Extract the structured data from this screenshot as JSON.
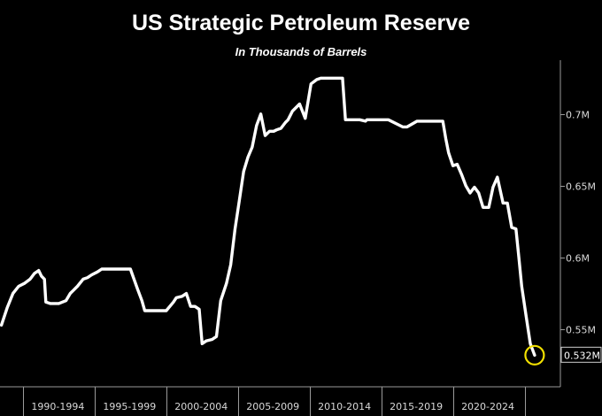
{
  "colors": {
    "background": "#000000",
    "line": "#ffffff",
    "axis": "#9a9a9a",
    "text": "#d8d8d8",
    "highlight": "#f2e000"
  },
  "chart_data": {
    "type": "line",
    "title": "US Strategic Petroleum Reserve",
    "subtitle": "In Thousands of Barrels",
    "xlabel": "",
    "ylabel": "",
    "xlim": [
      1985.9,
      2025.0
    ],
    "ylim": [
      0.51,
      0.7375
    ],
    "x_tick_labels": [
      "1990-1994",
      "1995-1999",
      "2000-2004",
      "2005-2009",
      "2010-2014",
      "2015-2019",
      "2020-2024"
    ],
    "x_tick_centers": [
      1990,
      1995,
      2000,
      2005,
      2010,
      2015,
      2020
    ],
    "x_tick_bounds": [
      1987.5,
      1992.5,
      1997.5,
      2002.5,
      2007.5,
      2012.5,
      2017.5,
      2022.5
    ],
    "y_ticks": [
      {
        "value": 0.55,
        "label": "0.55M"
      },
      {
        "value": 0.6,
        "label": "0.6M"
      },
      {
        "value": 0.65,
        "label": "0.65M"
      },
      {
        "value": 0.7,
        "label": "0.7M"
      }
    ],
    "last_value_label": "0.532M",
    "series": [
      {
        "name": "US Strategic Petroleum Reserve",
        "x": [
          1986.0,
          1986.4,
          1986.8,
          1987.2,
          1987.6,
          1988.0,
          1988.3,
          1988.6,
          1988.8,
          1989.0,
          1989.1,
          1989.4,
          1990.0,
          1990.5,
          1990.8,
          1991.0,
          1991.3,
          1991.7,
          1992.0,
          1992.3,
          1992.7,
          1993.0,
          1993.5,
          1994.0,
          1995.0,
          1995.5,
          1995.8,
          1996.0,
          1996.2,
          1996.5,
          1997.0,
          1997.5,
          1998.0,
          1998.2,
          1998.6,
          1998.9,
          1999.2,
          1999.5,
          1999.8,
          2000.0,
          2000.3,
          2000.7,
          2001.0,
          2001.3,
          2001.7,
          2002.0,
          2002.3,
          2002.6,
          2002.9,
          2003.2,
          2003.5,
          2003.8,
          2004.1,
          2004.4,
          2004.7,
          2005.0,
          2005.2,
          2005.5,
          2005.8,
          2006.0,
          2006.3,
          2006.8,
          2007.2,
          2007.6,
          2008.0,
          2008.3,
          2008.6,
          2008.9,
          2009.2,
          2009.5,
          2009.8,
          2010.0,
          2011.0,
          2011.4,
          2011.5,
          2012.0,
          2013.0,
          2014.0,
          2014.3,
          2015.0,
          2015.5,
          2016.0,
          2016.3,
          2016.8,
          2017.0,
          2017.2,
          2017.5,
          2017.8,
          2018.1,
          2018.4,
          2018.7,
          2019.0,
          2019.3,
          2019.6,
          2020.0,
          2020.3,
          2020.6,
          2021.0,
          2021.3,
          2021.6,
          2021.9,
          2022.1,
          2022.3,
          2022.6,
          2022.9,
          2023.2
        ],
        "values": [
          0.553,
          0.565,
          0.575,
          0.58,
          0.582,
          0.585,
          0.589,
          0.591,
          0.587,
          0.585,
          0.569,
          0.568,
          0.568,
          0.57,
          0.575,
          0.577,
          0.58,
          0.585,
          0.586,
          0.588,
          0.59,
          0.592,
          0.592,
          0.592,
          0.592,
          0.578,
          0.57,
          0.563,
          0.563,
          0.563,
          0.563,
          0.563,
          0.569,
          0.572,
          0.573,
          0.575,
          0.566,
          0.566,
          0.564,
          0.54,
          0.542,
          0.543,
          0.545,
          0.57,
          0.582,
          0.595,
          0.62,
          0.64,
          0.66,
          0.67,
          0.677,
          0.692,
          0.7,
          0.685,
          0.688,
          0.688,
          0.689,
          0.69,
          0.694,
          0.696,
          0.702,
          0.707,
          0.697,
          0.721,
          0.724,
          0.725,
          0.725,
          0.725,
          0.725,
          0.725,
          0.725,
          0.696,
          0.696,
          0.695,
          0.696,
          0.696,
          0.696,
          0.691,
          0.691,
          0.695,
          0.695,
          0.695,
          0.695,
          0.695,
          0.683,
          0.673,
          0.664,
          0.665,
          0.658,
          0.65,
          0.645,
          0.649,
          0.645,
          0.635,
          0.635,
          0.649,
          0.656,
          0.638,
          0.638,
          0.621,
          0.62,
          0.6,
          0.58,
          0.56,
          0.54,
          0.532
        ]
      }
    ]
  }
}
